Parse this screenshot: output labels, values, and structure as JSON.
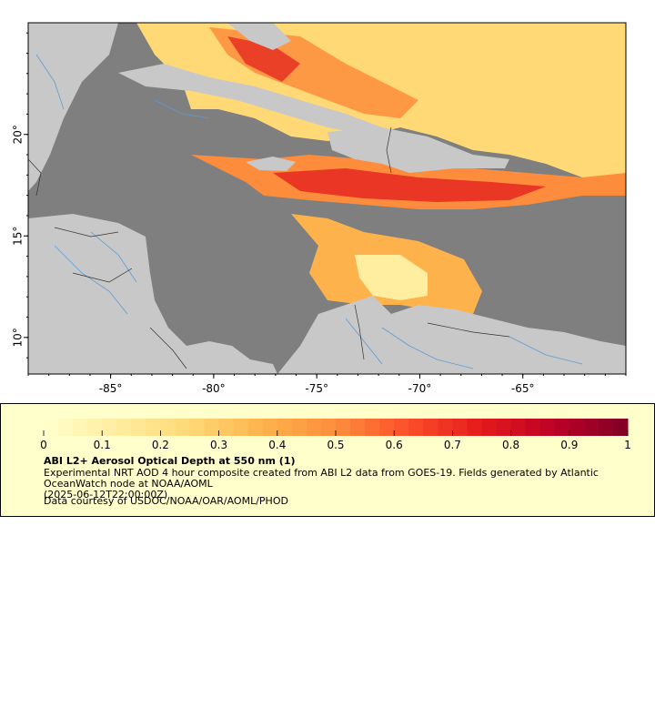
{
  "map": {
    "lon_ticks": [
      {
        "value": -85,
        "label": "-85°"
      },
      {
        "value": -80,
        "label": "-80°"
      },
      {
        "value": -75,
        "label": "-75°"
      },
      {
        "value": -70,
        "label": "-70°"
      },
      {
        "value": -65,
        "label": "-65°"
      }
    ],
    "lat_ticks": [
      {
        "value": 10,
        "label": "10°"
      },
      {
        "value": 15,
        "label": "15°"
      },
      {
        "value": 20,
        "label": "20°"
      }
    ],
    "extent": {
      "lon_min": -89,
      "lon_max": -60,
      "lat_min": 8.2,
      "lat_max": 25.5
    },
    "colors": {
      "ocean": "#7f7f7f",
      "land": "#c8c8c8",
      "rivers": "#5b9bd5",
      "borders": "#333333"
    }
  },
  "colorbar": {
    "min": 0,
    "max": 1,
    "tick_labels": [
      "0",
      "0.1",
      "0.2",
      "0.3",
      "0.4",
      "0.5",
      "0.6",
      "0.7",
      "0.8",
      "0.9",
      "1"
    ],
    "colors": [
      "#ffffcc",
      "#ffeda0",
      "#fed976",
      "#feb24c",
      "#fd8d3c",
      "#fc4e2a",
      "#e31a1c",
      "#bd0026",
      "#800026"
    ]
  },
  "legend": {
    "title": "ABI L2+ Aerosol Optical Depth at 550 nm (1)",
    "description": "Experimental NRT AOD 4 hour composite created from ABI L2 data from GOES-19. Fields generated by Atlantic OceanWatch node at NOAA/AOML",
    "timestamp": "(2025-06-12T22:00:00Z)",
    "credit": "Data courtesy of USDOC/NOAA/OAR/AOML/PHOD"
  }
}
